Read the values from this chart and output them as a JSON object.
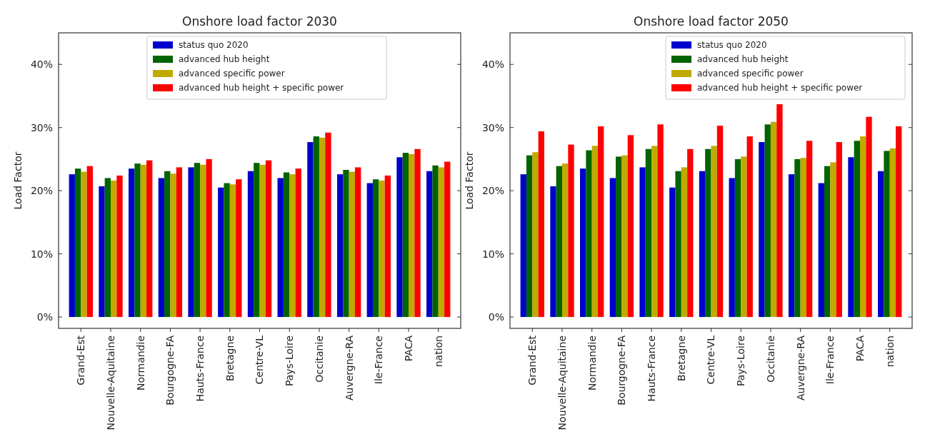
{
  "chart_data": [
    {
      "type": "bar",
      "title": "Onshore load factor 2030",
      "ylabel": "Load Factor",
      "categories": [
        "Grand-Est",
        "Nouvelle-Aquitaine",
        "Normandie",
        "Bourgogne-FA",
        "Hauts-France",
        "Bretagne",
        "Centre-VL",
        "Pays-Loire",
        "Occitanie",
        "Auvergne-RA",
        "Ile-France",
        "PACA",
        "nation"
      ],
      "series": [
        {
          "name": "status quo 2020",
          "color": "#0000cc",
          "values": [
            22.6,
            20.7,
            23.5,
            22.0,
            23.7,
            20.5,
            23.1,
            22.0,
            27.7,
            22.6,
            21.2,
            25.3,
            23.1
          ]
        },
        {
          "name": "advanced hub height",
          "color": "#006400",
          "values": [
            23.5,
            22.0,
            24.3,
            23.1,
            24.4,
            21.2,
            24.4,
            22.9,
            28.6,
            23.3,
            21.8,
            26.0,
            24.0
          ]
        },
        {
          "name": "advanced specific power",
          "color": "#c0aa00",
          "values": [
            23.0,
            21.6,
            24.1,
            22.7,
            24.1,
            21.0,
            24.1,
            22.6,
            28.4,
            23.0,
            21.6,
            25.8,
            23.7
          ]
        },
        {
          "name": "advanced hub height + specific power",
          "color": "#ff0000",
          "values": [
            23.9,
            22.4,
            24.8,
            23.7,
            25.0,
            21.8,
            24.8,
            23.5,
            29.2,
            23.7,
            22.4,
            26.6,
            24.6
          ]
        }
      ],
      "ylim": [
        -1.8,
        45
      ],
      "yticks": [
        {
          "value": 0,
          "label": "0%"
        },
        {
          "value": 10,
          "label": "10%"
        },
        {
          "value": 20,
          "label": "20%"
        },
        {
          "value": 30,
          "label": "30%"
        },
        {
          "value": 40,
          "label": "40%"
        }
      ],
      "grid": false,
      "legend": "top"
    },
    {
      "type": "bar",
      "title": "Onshore load factor 2050",
      "ylabel": "Load Factor",
      "categories": [
        "Grand-Est",
        "Nouvelle-Aquitaine",
        "Normandie",
        "Bourgogne-FA",
        "Hauts-France",
        "Bretagne",
        "Centre-VL",
        "Pays-Loire",
        "Occitanie",
        "Auvergne-RA",
        "Ile-France",
        "PACA",
        "nation"
      ],
      "series": [
        {
          "name": "status quo 2020",
          "color": "#0000cc",
          "values": [
            22.6,
            20.7,
            23.5,
            22.0,
            23.7,
            20.5,
            23.1,
            22.0,
            27.7,
            22.6,
            21.2,
            25.3,
            23.1
          ]
        },
        {
          "name": "advanced hub height",
          "color": "#006400",
          "values": [
            25.6,
            23.9,
            26.4,
            25.4,
            26.6,
            23.1,
            26.6,
            25.0,
            30.5,
            25.0,
            23.9,
            27.9,
            26.3
          ]
        },
        {
          "name": "advanced specific power",
          "color": "#c0aa00",
          "values": [
            26.1,
            24.3,
            27.1,
            25.6,
            27.1,
            23.7,
            27.1,
            25.4,
            30.9,
            25.2,
            24.5,
            28.6,
            26.7
          ]
        },
        {
          "name": "advanced hub height + specific power",
          "color": "#ff0000",
          "values": [
            29.4,
            27.3,
            30.2,
            28.8,
            30.5,
            26.6,
            30.3,
            28.6,
            33.7,
            27.9,
            27.7,
            31.7,
            30.2
          ]
        }
      ],
      "ylim": [
        -1.8,
        45
      ],
      "yticks": [
        {
          "value": 0,
          "label": "0%"
        },
        {
          "value": 10,
          "label": "10%"
        },
        {
          "value": 20,
          "label": "20%"
        },
        {
          "value": 30,
          "label": "30%"
        },
        {
          "value": 40,
          "label": "40%"
        }
      ],
      "grid": false,
      "legend": "top right"
    }
  ]
}
